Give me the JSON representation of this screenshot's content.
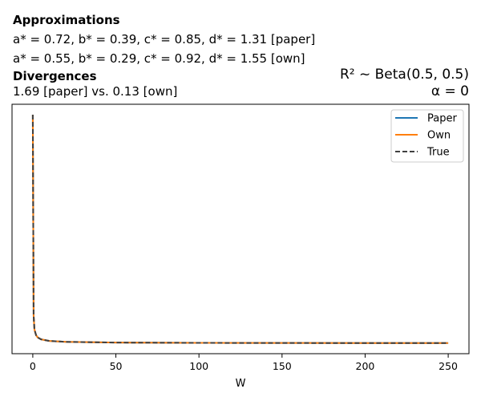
{
  "header": {
    "approx_title": "Approximations",
    "paper_line": "a* = 0.72, b* = 0.39, c* = 0.85, d* = 1.31 [paper]",
    "own_line": "a* = 0.55, b* = 0.29, c* = 0.92, d* = 1.55 [own]",
    "div_title": "Divergences",
    "div_line": "1.69 [paper] vs. 0.13 [own]",
    "r2_line": "R² ~  Beta(0.5, 0.5)",
    "alpha_line": "α = 0"
  },
  "chart_data": {
    "type": "line",
    "title": "",
    "xlabel": "W",
    "ylabel": "",
    "xlim": [
      -12.5,
      262.5
    ],
    "xticks": [
      0,
      50,
      100,
      150,
      200,
      250
    ],
    "yticks_visible": false,
    "grid": false,
    "legend_position": "top-right",
    "colors": {
      "Paper": "#1f77b4",
      "Own": "#ff7f0e",
      "True": "#404040"
    },
    "series": [
      {
        "name": "Paper",
        "style": "solid",
        "x": [
          0,
          0.5,
          1,
          2,
          3,
          5,
          10,
          20,
          50,
          100,
          150,
          200,
          250
        ],
        "y": [
          1.0,
          0.12,
          0.06,
          0.035,
          0.025,
          0.017,
          0.01,
          0.006,
          0.003,
          0.0017,
          0.0012,
          0.0009,
          0.0007
        ]
      },
      {
        "name": "Own",
        "style": "solid",
        "x": [
          0,
          0.5,
          1,
          2,
          3,
          5,
          10,
          20,
          50,
          100,
          150,
          200,
          250
        ],
        "y": [
          1.0,
          0.12,
          0.06,
          0.035,
          0.025,
          0.017,
          0.01,
          0.006,
          0.003,
          0.0017,
          0.0012,
          0.0009,
          0.0007
        ]
      },
      {
        "name": "True",
        "style": "dashed",
        "x": [
          0,
          0.5,
          1,
          2,
          3,
          5,
          10,
          20,
          50,
          100,
          150,
          200,
          250
        ],
        "y": [
          1.0,
          0.12,
          0.06,
          0.035,
          0.025,
          0.017,
          0.01,
          0.006,
          0.003,
          0.0017,
          0.0012,
          0.0009,
          0.0007
        ]
      }
    ]
  }
}
